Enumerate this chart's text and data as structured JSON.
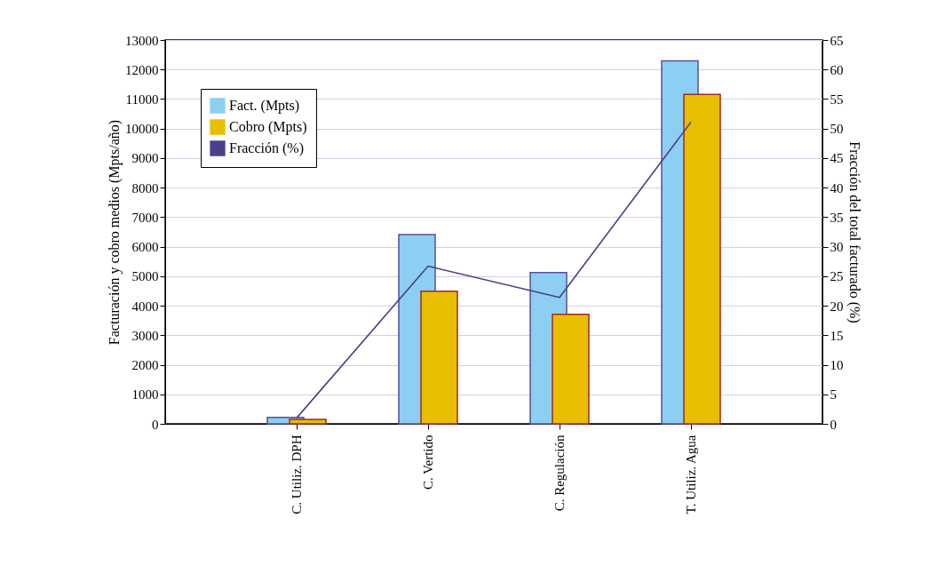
{
  "chart_data": {
    "type": "bar",
    "categories": [
      "C. Utiliz. DPH",
      "C. Vertido",
      "C. Regulación",
      "T. Utiliz. Agua"
    ],
    "ylabel": "Facturación y cobro medios (Mpts/año)",
    "y2label": "Fracción del total facturado (%)",
    "ylim": [
      0,
      13000
    ],
    "yticks": [
      0,
      1000,
      2000,
      3000,
      4000,
      5000,
      6000,
      7000,
      8000,
      9000,
      10000,
      11000,
      12000,
      13000
    ],
    "y2lim": [
      0,
      65
    ],
    "y2ticks": [
      0,
      5,
      10,
      15,
      20,
      25,
      30,
      35,
      40,
      45,
      50,
      55,
      60,
      65
    ],
    "series": [
      {
        "name": "Fact. (Mpts)",
        "color": "#8ccff2",
        "values": [
          220,
          6410,
          5120,
          12290
        ]
      },
      {
        "name": "Cobro (Mpts)",
        "color": "#e8be00",
        "values": [
          150,
          4490,
          3710,
          11160
        ]
      },
      {
        "name": "Fracción (%)",
        "type": "line",
        "axis": "y2",
        "color": "#4b3f8c",
        "values": [
          1,
          26.7,
          21.4,
          51.1
        ]
      }
    ],
    "grid": "y",
    "legend": "top left",
    "marker": "none",
    "line_style": "solid"
  }
}
